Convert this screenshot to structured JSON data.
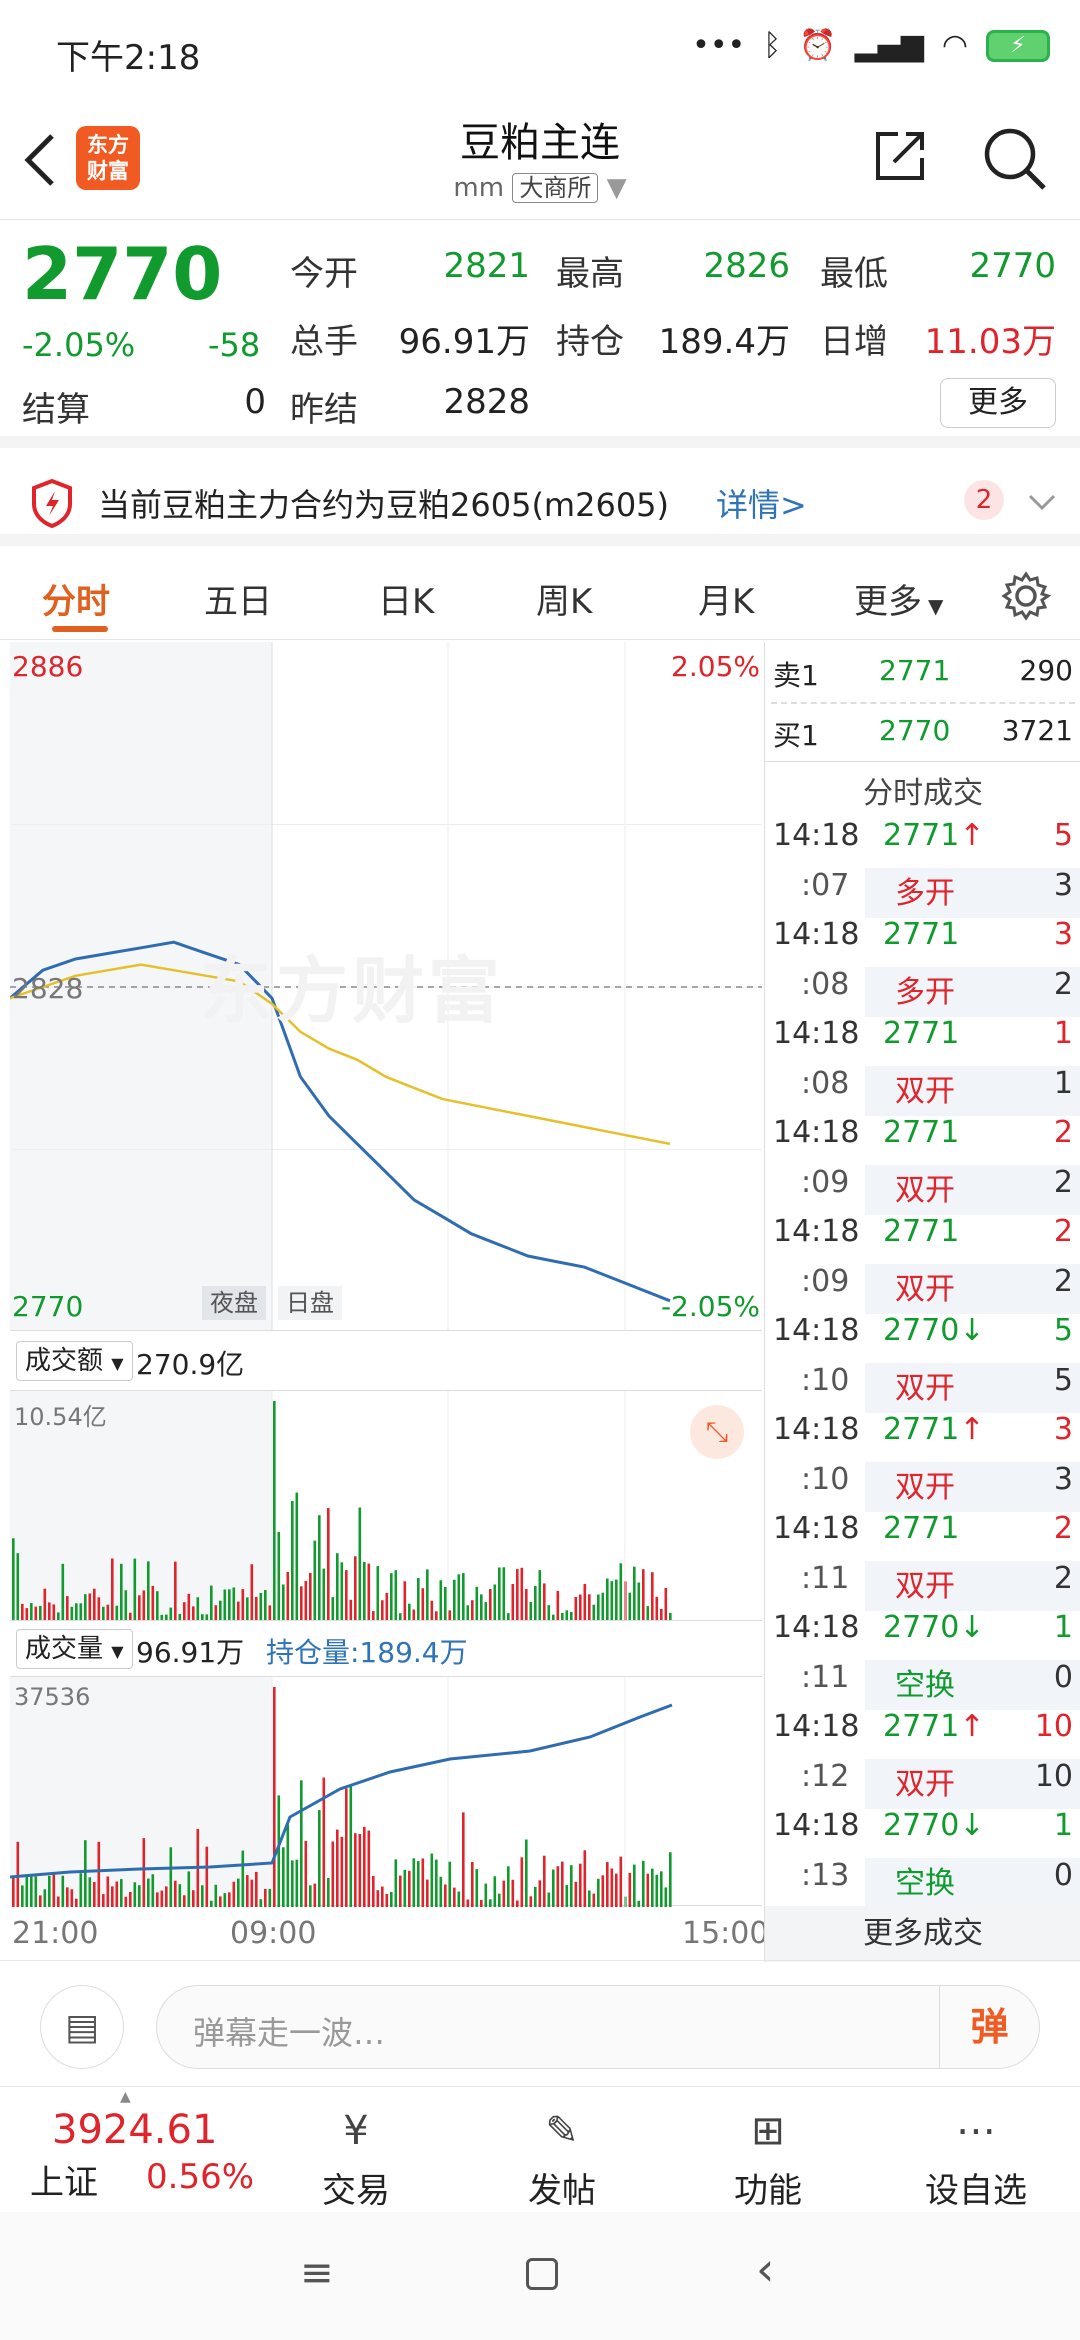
{
  "status_bar": {
    "time": "下午2:18",
    "battery_label": "⚡"
  },
  "header": {
    "logo_line1": "东方",
    "logo_line2": "财富",
    "title": "豆粕主连",
    "code": "mm",
    "exchange": "大商所"
  },
  "quote": {
    "price": "2770",
    "change_pct": "-2.05%",
    "change": "-58",
    "settle_label": "结算",
    "settle_value": "0",
    "open_label": "今开",
    "open_value": "2821",
    "high_label": "最高",
    "high_value": "2826",
    "low_label": "最低",
    "low_value": "2770",
    "volume_label": "总手",
    "volume_value": "96.91万",
    "oi_label": "持仓",
    "oi_value": "189.4万",
    "daily_inc_label": "日增",
    "daily_inc_value": "11.03万",
    "prev_settle_label": "昨结",
    "prev_settle_value": "2828",
    "more_button": "更多"
  },
  "notice": {
    "text": "当前豆粕主力合约为豆粕2605(m2605)",
    "link": "详情>",
    "badge": "2"
  },
  "tabs": [
    "分时",
    "五日",
    "日K",
    "周K",
    "月K",
    "更多"
  ],
  "active_tab": "分时",
  "chart": {
    "price_top": "2886",
    "pct_top": "2.05%",
    "ref_price": "2828",
    "price_bottom": "2770",
    "pct_bottom": "-2.05%",
    "session_night": "夜盘",
    "session_day": "日盘",
    "watermark": "东方财富",
    "amount_selector": "成交额",
    "amount_value": "270.9亿",
    "amount_max": "10.54亿",
    "volume_selector": "成交量",
    "volume_value": "96.91万",
    "oi_label": "持仓量:189.4万",
    "volume_max": "37536",
    "time_start": "21:00",
    "time_mid": "09:00",
    "time_end": "15:00"
  },
  "chart_data": {
    "type": "line",
    "x_ticks": [
      "21:00",
      "09:00",
      "15:00"
    ],
    "ylim": [
      2770,
      2886
    ],
    "ref_value": 2828,
    "series": [
      {
        "values": [
          2826,
          2831,
          2833,
          2834,
          2835,
          2836,
          2834,
          2832,
          2826,
          2812,
          2805,
          2800,
          2795,
          2790,
          2787,
          2784,
          2782,
          2780,
          2779,
          2778,
          2776,
          2774,
          2772
        ]
      },
      {
        "values": [
          2826,
          2828,
          2830,
          2831,
          2832,
          2831,
          2830,
          2829,
          2825,
          2820,
          2817,
          2815,
          2812,
          2810,
          2808,
          2807,
          2806,
          2805,
          2804,
          2803,
          2802,
          2801,
          2800
        ]
      }
    ]
  },
  "order_book": {
    "sell_label": "卖1",
    "sell_price": "2771",
    "sell_vol": "290",
    "buy_label": "买1",
    "buy_price": "2770",
    "buy_vol": "3721"
  },
  "trades_title": "分时成交",
  "trades": [
    {
      "time": "14:18",
      "price": "2771",
      "dir": "up",
      "vol": "5",
      "sec": ":07",
      "type": "多开",
      "cnt": "3"
    },
    {
      "time": "14:18",
      "price": "2771",
      "dir": "",
      "vol": "3",
      "sec": ":08",
      "type": "多开",
      "cnt": "2"
    },
    {
      "time": "14:18",
      "price": "2771",
      "dir": "",
      "vol": "1",
      "sec": ":08",
      "type": "双开",
      "cnt": "1"
    },
    {
      "time": "14:18",
      "price": "2771",
      "dir": "",
      "vol": "2",
      "sec": ":09",
      "type": "双开",
      "cnt": "2"
    },
    {
      "time": "14:18",
      "price": "2771",
      "dir": "",
      "vol": "2",
      "sec": ":09",
      "type": "双开",
      "cnt": "2"
    },
    {
      "time": "14:18",
      "price": "2770",
      "dir": "down",
      "vol": "5",
      "sec": ":10",
      "type": "双开",
      "cnt": "5"
    },
    {
      "time": "14:18",
      "price": "2771",
      "dir": "up",
      "vol": "3",
      "sec": ":10",
      "type": "双开",
      "cnt": "3"
    },
    {
      "time": "14:18",
      "price": "2771",
      "dir": "",
      "vol": "2",
      "sec": ":11",
      "type": "双开",
      "cnt": "2"
    },
    {
      "time": "14:18",
      "price": "2770",
      "dir": "down",
      "vol": "1",
      "sec": ":11",
      "type": "空换",
      "cnt": "0"
    },
    {
      "time": "14:18",
      "price": "2771",
      "dir": "up",
      "vol": "10",
      "sec": ":12",
      "type": "双开",
      "cnt": "10"
    },
    {
      "time": "14:18",
      "price": "2770",
      "dir": "down",
      "vol": "1",
      "sec": ":13",
      "type": "空换",
      "cnt": "0"
    }
  ],
  "more_trades": "更多成交",
  "danmu": {
    "placeholder": "弹幕走一波…",
    "send_icon_label": "弹"
  },
  "bottom_nav": {
    "index_value": "3924.61",
    "index_name": "上证",
    "index_pct": "0.56%",
    "trade": "交易",
    "post": "发帖",
    "func": "功能",
    "watchlist": "设自选"
  },
  "colors": {
    "up": "#e0242b",
    "down": "#119a2e",
    "accent": "#f15a22",
    "price_line": "#2f6db0",
    "avg_line": "#e6c02a"
  }
}
